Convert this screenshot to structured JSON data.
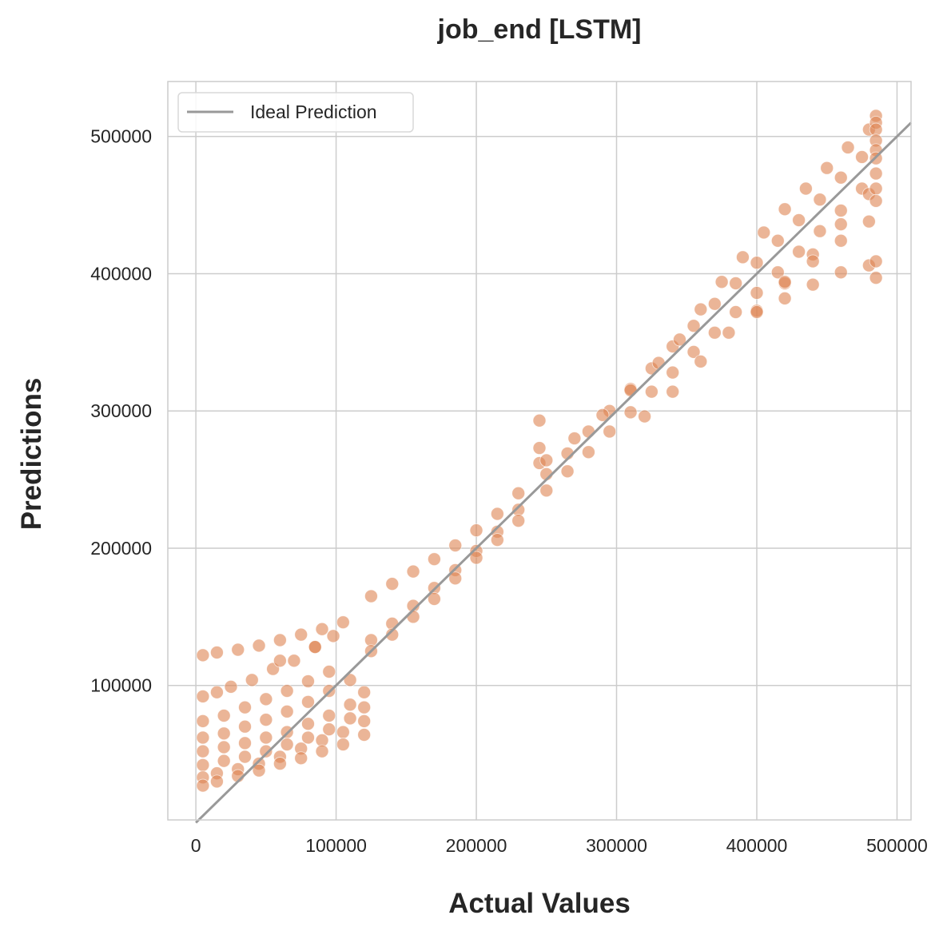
{
  "chart_data": {
    "type": "scatter",
    "title": "job_end [LSTM]",
    "xlabel": "Actual Values",
    "ylabel": "Predictions",
    "xlim": [
      -20000,
      510000
    ],
    "ylim": [
      2000,
      540000
    ],
    "xticks": [
      0,
      100000,
      200000,
      300000,
      400000,
      500000
    ],
    "yticks": [
      100000,
      200000,
      300000,
      400000,
      500000
    ],
    "x_tick_labels": [
      "0",
      "100000",
      "200000",
      "300000",
      "400000",
      "500000"
    ],
    "y_tick_labels": [
      "100000",
      "200000",
      "300000",
      "400000",
      "500000"
    ],
    "grid": true,
    "legend_position": "top-left",
    "legend": [
      "Ideal Prediction"
    ],
    "colors": {
      "points": "#dd8452",
      "ideal_line": "#999999",
      "grid": "#cccccc",
      "axes_edge": "#cccccc"
    },
    "ideal_line": {
      "name": "Ideal Prediction",
      "x": [
        0,
        510000
      ],
      "y": [
        0,
        510000
      ]
    },
    "series": [
      {
        "points": [
          [
            5000,
            122000
          ],
          [
            15000,
            124000
          ],
          [
            30000,
            126000
          ],
          [
            45000,
            129000
          ],
          [
            60000,
            133000
          ],
          [
            75000,
            137000
          ],
          [
            90000,
            141000
          ],
          [
            105000,
            146000
          ],
          [
            5000,
            92000
          ],
          [
            15000,
            95000
          ],
          [
            25000,
            99000
          ],
          [
            40000,
            104000
          ],
          [
            55000,
            112000
          ],
          [
            70000,
            118000
          ],
          [
            85000,
            128000
          ],
          [
            5000,
            74000
          ],
          [
            20000,
            78000
          ],
          [
            35000,
            84000
          ],
          [
            50000,
            90000
          ],
          [
            65000,
            96000
          ],
          [
            80000,
            103000
          ],
          [
            95000,
            110000
          ],
          [
            5000,
            62000
          ],
          [
            20000,
            65000
          ],
          [
            35000,
            70000
          ],
          [
            50000,
            75000
          ],
          [
            65000,
            81000
          ],
          [
            80000,
            88000
          ],
          [
            95000,
            96000
          ],
          [
            110000,
            104000
          ],
          [
            5000,
            52000
          ],
          [
            20000,
            55000
          ],
          [
            35000,
            58000
          ],
          [
            50000,
            62000
          ],
          [
            65000,
            66000
          ],
          [
            80000,
            72000
          ],
          [
            95000,
            78000
          ],
          [
            110000,
            86000
          ],
          [
            120000,
            95000
          ],
          [
            5000,
            42000
          ],
          [
            20000,
            45000
          ],
          [
            35000,
            48000
          ],
          [
            50000,
            52000
          ],
          [
            65000,
            57000
          ],
          [
            80000,
            62000
          ],
          [
            95000,
            68000
          ],
          [
            110000,
            76000
          ],
          [
            120000,
            84000
          ],
          [
            5000,
            33000
          ],
          [
            15000,
            36000
          ],
          [
            30000,
            39000
          ],
          [
            45000,
            43000
          ],
          [
            60000,
            48000
          ],
          [
            75000,
            54000
          ],
          [
            90000,
            60000
          ],
          [
            105000,
            66000
          ],
          [
            120000,
            74000
          ],
          [
            5000,
            27000
          ],
          [
            15000,
            30000
          ],
          [
            30000,
            34000
          ],
          [
            45000,
            38000
          ],
          [
            60000,
            43000
          ],
          [
            75000,
            47000
          ],
          [
            90000,
            52000
          ],
          [
            105000,
            57000
          ],
          [
            120000,
            64000
          ],
          [
            60000,
            118000
          ],
          [
            85000,
            128000
          ],
          [
            98000,
            136000
          ],
          [
            125000,
            165000
          ],
          [
            140000,
            174000
          ],
          [
            155000,
            183000
          ],
          [
            170000,
            192000
          ],
          [
            185000,
            202000
          ],
          [
            200000,
            213000
          ],
          [
            215000,
            225000
          ],
          [
            230000,
            240000
          ],
          [
            125000,
            133000
          ],
          [
            140000,
            145000
          ],
          [
            155000,
            158000
          ],
          [
            170000,
            171000
          ],
          [
            185000,
            184000
          ],
          [
            200000,
            198000
          ],
          [
            215000,
            212000
          ],
          [
            230000,
            228000
          ],
          [
            125000,
            125000
          ],
          [
            140000,
            137000
          ],
          [
            155000,
            150000
          ],
          [
            170000,
            163000
          ],
          [
            185000,
            178000
          ],
          [
            200000,
            193000
          ],
          [
            215000,
            206000
          ],
          [
            230000,
            220000
          ],
          [
            245000,
            293000
          ],
          [
            245000,
            273000
          ],
          [
            245000,
            262000
          ],
          [
            250000,
            254000
          ],
          [
            265000,
            269000
          ],
          [
            280000,
            285000
          ],
          [
            295000,
            300000
          ],
          [
            310000,
            316000
          ],
          [
            325000,
            331000
          ],
          [
            340000,
            347000
          ],
          [
            355000,
            362000
          ],
          [
            370000,
            378000
          ],
          [
            385000,
            393000
          ],
          [
            400000,
            408000
          ],
          [
            415000,
            424000
          ],
          [
            430000,
            439000
          ],
          [
            445000,
            454000
          ],
          [
            460000,
            470000
          ],
          [
            475000,
            485000
          ],
          [
            250000,
            242000
          ],
          [
            265000,
            256000
          ],
          [
            280000,
            270000
          ],
          [
            295000,
            285000
          ],
          [
            310000,
            299000
          ],
          [
            325000,
            314000
          ],
          [
            340000,
            328000
          ],
          [
            355000,
            343000
          ],
          [
            370000,
            357000
          ],
          [
            385000,
            372000
          ],
          [
            400000,
            386000
          ],
          [
            415000,
            401000
          ],
          [
            430000,
            416000
          ],
          [
            445000,
            431000
          ],
          [
            460000,
            446000
          ],
          [
            475000,
            462000
          ],
          [
            250000,
            264000
          ],
          [
            270000,
            280000
          ],
          [
            290000,
            297000
          ],
          [
            310000,
            315000
          ],
          [
            330000,
            335000
          ],
          [
            345000,
            352000
          ],
          [
            360000,
            374000
          ],
          [
            375000,
            394000
          ],
          [
            390000,
            412000
          ],
          [
            405000,
            430000
          ],
          [
            420000,
            447000
          ],
          [
            435000,
            462000
          ],
          [
            450000,
            477000
          ],
          [
            465000,
            492000
          ],
          [
            480000,
            505000
          ],
          [
            320000,
            296000
          ],
          [
            340000,
            314000
          ],
          [
            360000,
            336000
          ],
          [
            380000,
            357000
          ],
          [
            400000,
            373000
          ],
          [
            420000,
            393000
          ],
          [
            440000,
            414000
          ],
          [
            460000,
            436000
          ],
          [
            480000,
            458000
          ],
          [
            400000,
            372000
          ],
          [
            420000,
            382000
          ],
          [
            440000,
            392000
          ],
          [
            460000,
            401000
          ],
          [
            480000,
            406000
          ],
          [
            420000,
            394000
          ],
          [
            440000,
            409000
          ],
          [
            460000,
            424000
          ],
          [
            480000,
            438000
          ],
          [
            485000,
            515000
          ],
          [
            485000,
            510000
          ],
          [
            485000,
            505000
          ],
          [
            485000,
            497000
          ],
          [
            485000,
            490000
          ],
          [
            485000,
            484000
          ],
          [
            485000,
            473000
          ],
          [
            485000,
            462000
          ],
          [
            485000,
            453000
          ],
          [
            485000,
            409000
          ],
          [
            485000,
            397000
          ]
        ]
      }
    ]
  }
}
